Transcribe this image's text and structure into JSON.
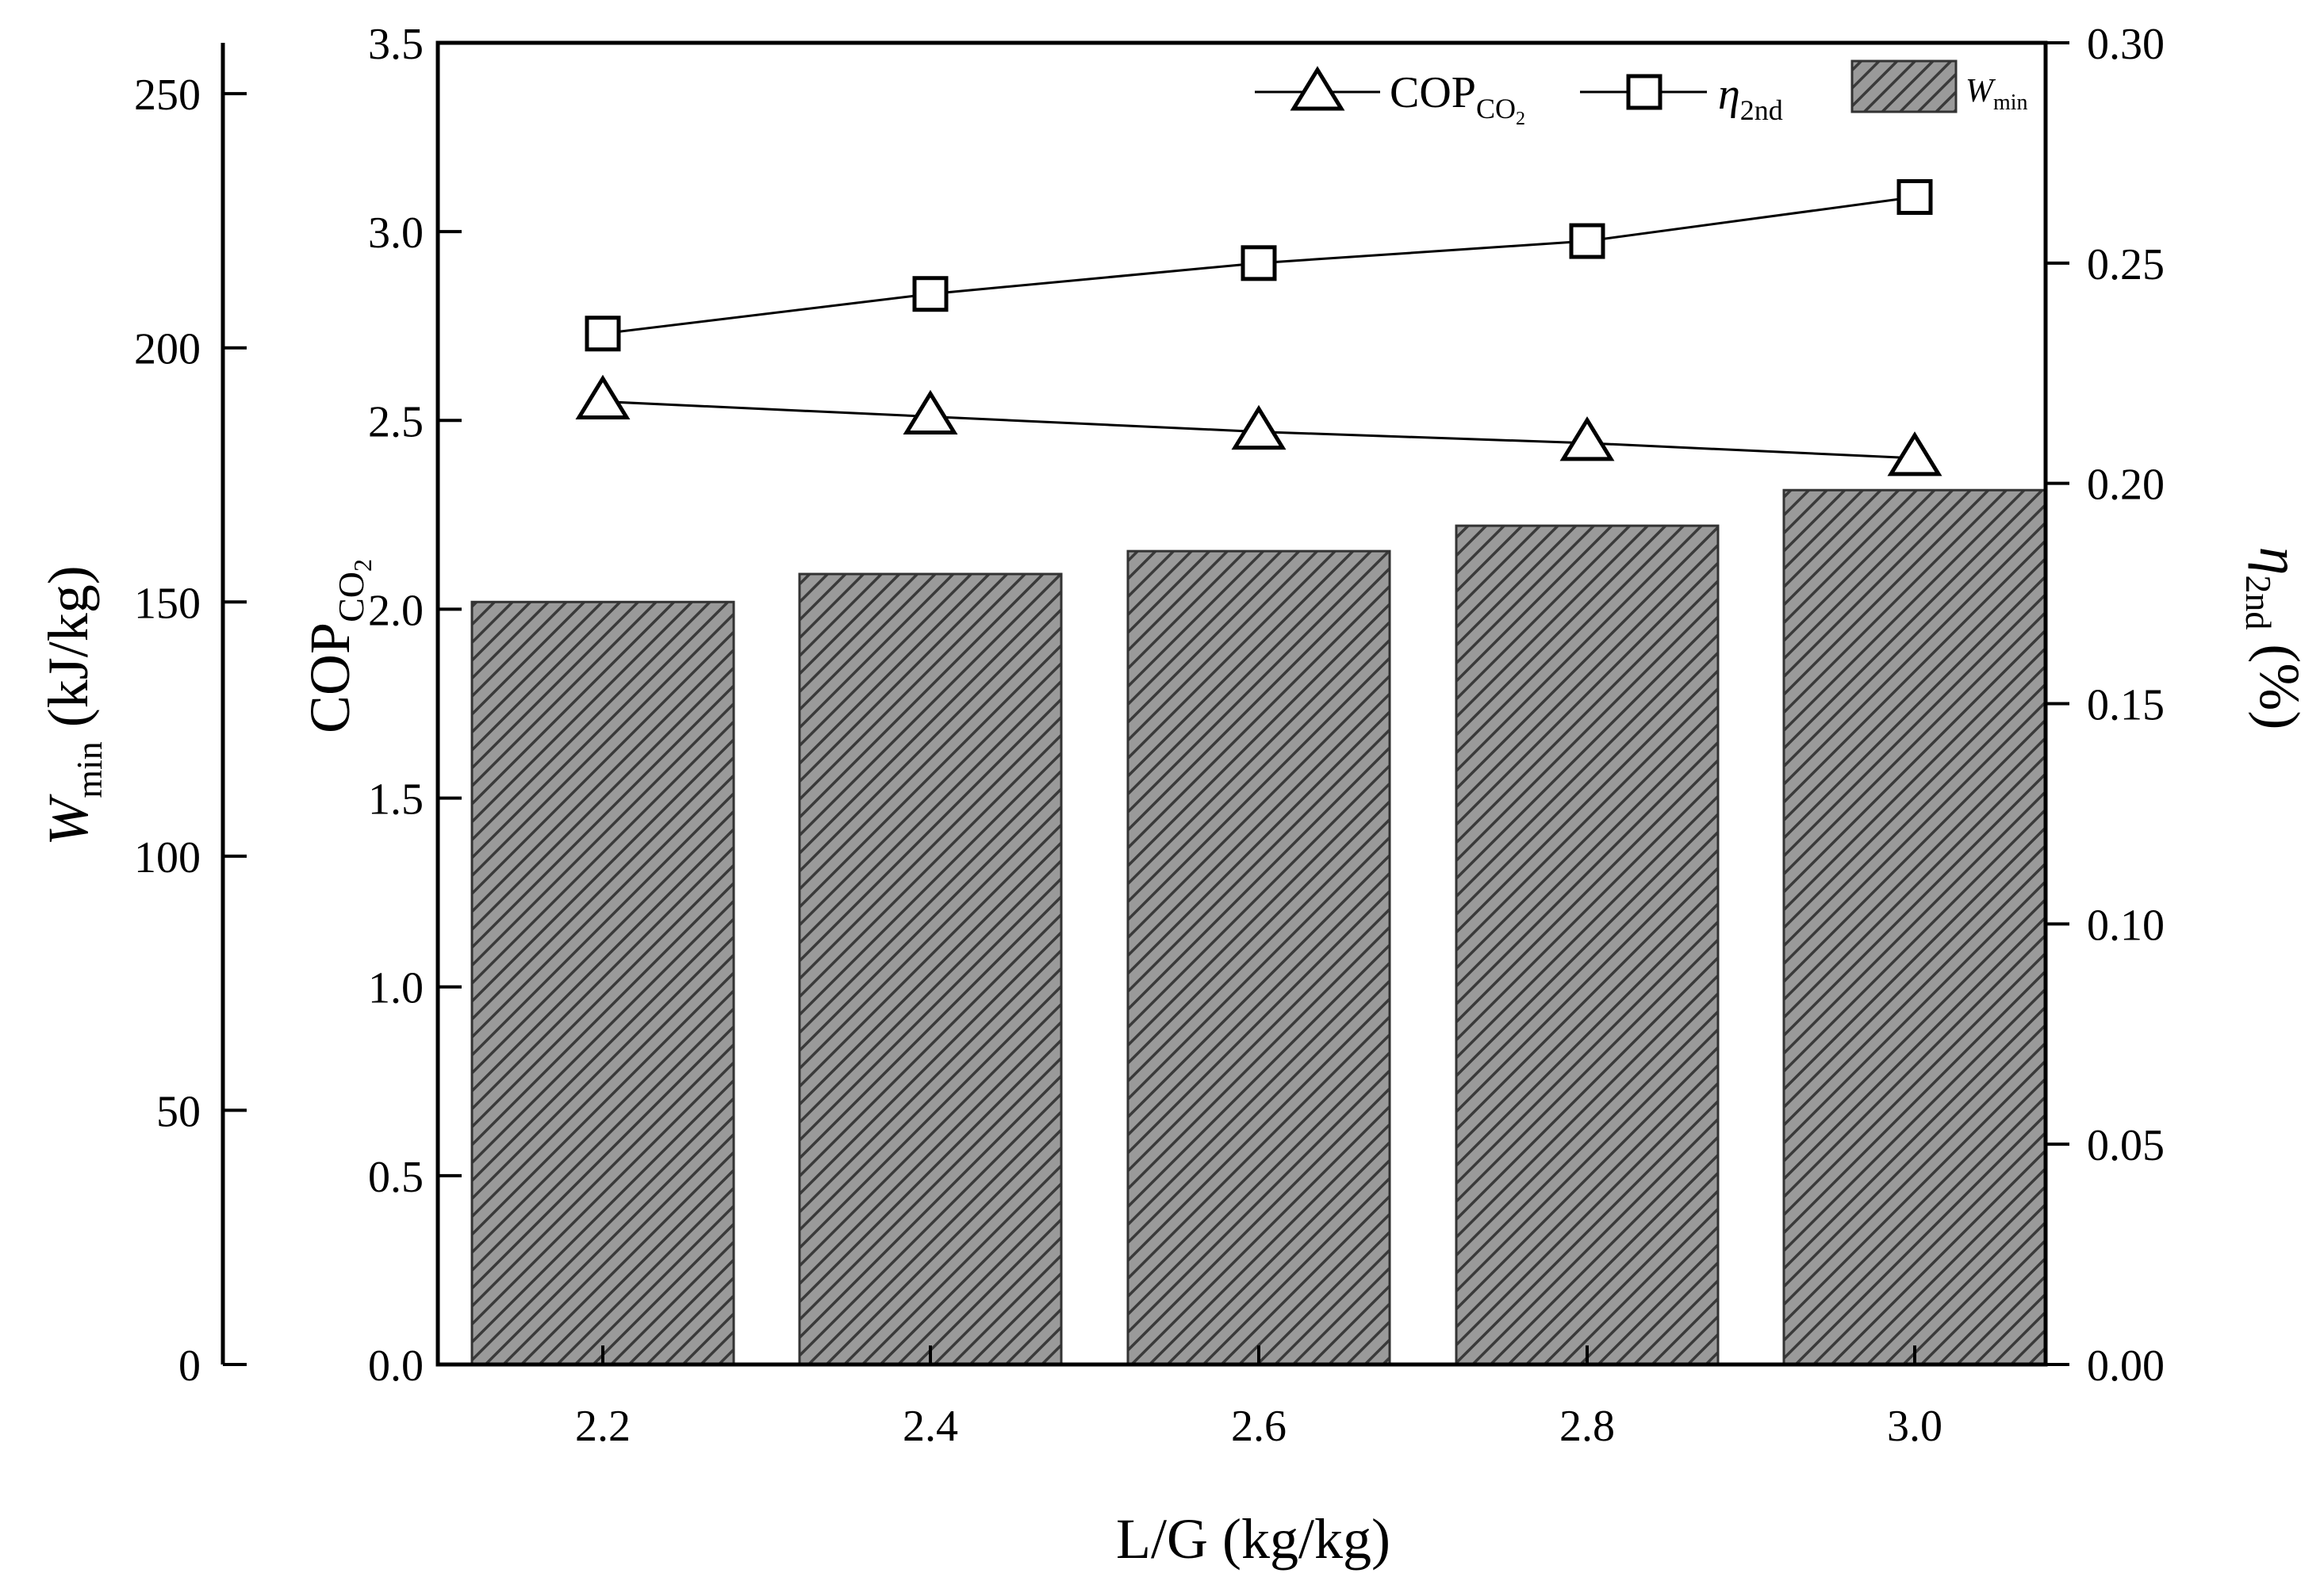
{
  "colors": {
    "axis": "#000000",
    "bar_fill": "#9a9a9a",
    "bar_hatch": "#3a3a3a",
    "marker_fill": "#ffffff"
  },
  "chart_data": {
    "type": "bar",
    "x_axis": {
      "label_main": "L/G (kg/kg)",
      "categories": [
        "2.2",
        "2.4",
        "2.6",
        "2.8",
        "3.0"
      ]
    },
    "wmin_axis": {
      "symbol": "W",
      "subscript": "min",
      "unit": "(kJ/kg)",
      "ylim": [
        0,
        260
      ],
      "ticks": [
        0,
        50,
        100,
        150,
        200,
        250
      ],
      "tick_labels": [
        "0",
        "50",
        "100",
        "150",
        "200",
        "250"
      ]
    },
    "cop_axis": {
      "main": "COP",
      "sub1": "CO",
      "sub2": "2",
      "ylim": [
        0.0,
        3.5
      ],
      "ticks": [
        0.0,
        0.5,
        1.0,
        1.5,
        2.0,
        2.5,
        3.0,
        3.5
      ],
      "tick_labels": [
        "0.0",
        "0.5",
        "1.0",
        "1.5",
        "2.0",
        "2.5",
        "3.0",
        "3.5"
      ]
    },
    "eta_axis": {
      "symbol": "η",
      "subscript": "2nd",
      "unit": "(%)",
      "ylim": [
        0.0,
        0.3
      ],
      "ticks": [
        0.0,
        0.05,
        0.1,
        0.15,
        0.2,
        0.25,
        0.3
      ],
      "tick_labels": [
        "0.00",
        "0.05",
        "0.10",
        "0.15",
        "0.20",
        "0.25",
        "0.30"
      ]
    },
    "series": [
      {
        "name": "Wmin",
        "kind": "bar",
        "axis": "wmin",
        "values": [
          150,
          155.5,
          160,
          165,
          172
        ]
      },
      {
        "name": "COPCO2",
        "kind": "line",
        "marker": "triangle",
        "axis": "cop",
        "values": [
          2.55,
          2.51,
          2.47,
          2.44,
          2.4
        ]
      },
      {
        "name": "η2nd",
        "kind": "line",
        "marker": "square",
        "axis": "eta",
        "values": [
          0.234,
          0.243,
          0.25,
          0.255,
          0.265
        ]
      }
    ],
    "legend": {
      "placement": "top-right",
      "cop": {
        "main": "COP",
        "sub1": "CO",
        "sub2": "2"
      },
      "eta": {
        "symbol": "η",
        "subscript": "2nd"
      },
      "wmin": {
        "symbol": "W",
        "subscript": "min"
      }
    }
  }
}
